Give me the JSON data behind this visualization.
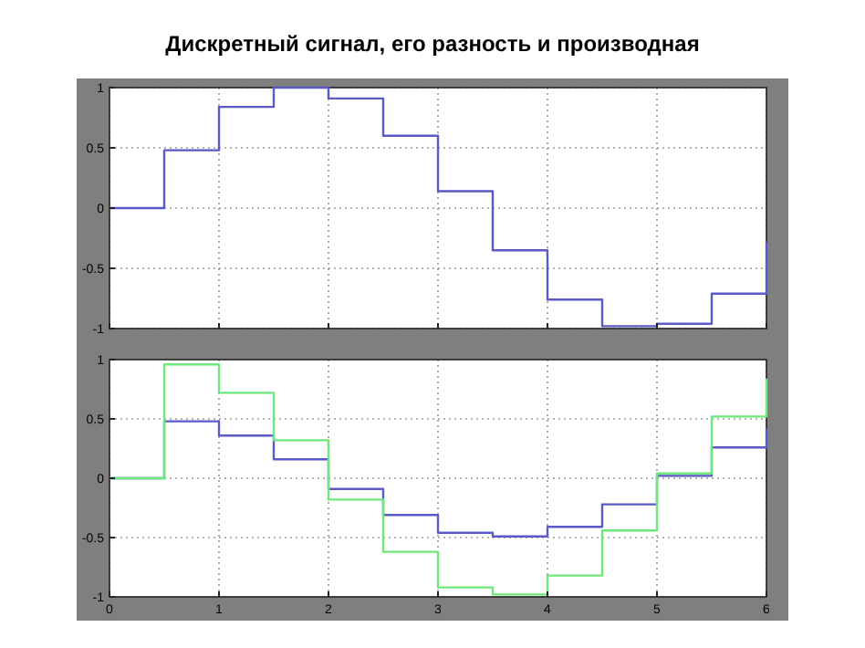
{
  "chart_data": [
    {
      "type": "step",
      "title": "Дискретный сигнал, его разность и производная",
      "x": [
        0,
        0.5,
        1,
        1.5,
        2,
        2.5,
        3,
        3.5,
        4,
        4.5,
        5,
        5.5,
        6
      ],
      "series": [
        {
          "color": "#5a5ac8",
          "values": [
            0,
            0.48,
            0.84,
            1.0,
            0.91,
            0.6,
            0.14,
            -0.35,
            -0.76,
            -0.98,
            -0.96,
            -0.71,
            -0.28
          ]
        }
      ],
      "xlim": [
        0,
        6
      ],
      "xticks": [
        0,
        1,
        2,
        3,
        4,
        5,
        6
      ],
      "ylim": [
        -1,
        1
      ],
      "yticks": [
        -1,
        -0.5,
        0,
        0.5,
        1
      ],
      "grid": true,
      "tick_labels": "y",
      "line_style": "solid"
    },
    {
      "type": "step",
      "x": [
        0,
        0.5,
        1,
        1.5,
        2,
        2.5,
        3,
        3.5,
        4,
        4.5,
        5,
        5.5,
        6
      ],
      "series": [
        {
          "color": "#5a5ac8",
          "values": [
            0,
            0.48,
            0.36,
            0.16,
            -0.09,
            -0.31,
            -0.46,
            -0.49,
            -0.41,
            -0.22,
            0.02,
            0.26,
            0.42
          ]
        },
        {
          "color": "#6ee87a",
          "values": [
            0,
            0.96,
            0.72,
            0.32,
            -0.18,
            -0.62,
            -0.92,
            -0.98,
            -0.82,
            -0.44,
            0.04,
            0.52,
            0.84
          ]
        }
      ],
      "xlim": [
        0,
        6
      ],
      "xticks": [
        0,
        1,
        2,
        3,
        4,
        5,
        6
      ],
      "ylim": [
        -1,
        1
      ],
      "yticks": [
        -1,
        -0.5,
        0,
        0.5,
        1
      ],
      "grid": true,
      "line_style": "solid"
    }
  ]
}
